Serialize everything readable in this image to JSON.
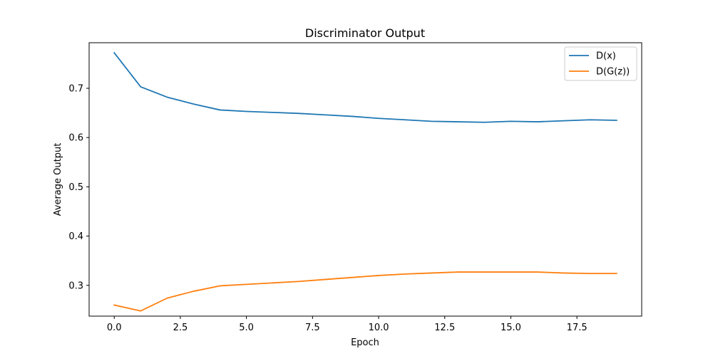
{
  "chart_data": {
    "type": "line",
    "title": "Discriminator Output",
    "xlabel": "Epoch",
    "ylabel": "Average Output",
    "x": [
      0,
      1,
      2,
      3,
      4,
      5,
      6,
      7,
      8,
      9,
      10,
      11,
      12,
      13,
      14,
      15,
      16,
      17,
      18,
      19
    ],
    "xlim": [
      -0.95,
      19.95
    ],
    "ylim": [
      0.2375,
      0.7925
    ],
    "xticks": [
      0.0,
      2.5,
      5.0,
      7.5,
      10.0,
      12.5,
      15.0,
      17.5
    ],
    "xtick_labels": [
      "0.0",
      "2.5",
      "5.0",
      "7.5",
      "10.0",
      "12.5",
      "15.0",
      "17.5"
    ],
    "yticks": [
      0.3,
      0.4,
      0.5,
      0.6,
      0.7
    ],
    "ytick_labels": [
      "0.3",
      "0.4",
      "0.5",
      "0.6",
      "0.7"
    ],
    "grid": false,
    "legend_position": "top-right",
    "series": [
      {
        "name": "D(x)",
        "color": "#1f77b4",
        "values": [
          0.772,
          0.703,
          0.682,
          0.668,
          0.656,
          0.653,
          0.651,
          0.649,
          0.646,
          0.643,
          0.639,
          0.636,
          0.633,
          0.632,
          0.631,
          0.633,
          0.632,
          0.634,
          0.636,
          0.635
        ]
      },
      {
        "name": "D(G(z))",
        "color": "#ff7f0e",
        "values": [
          0.26,
          0.248,
          0.274,
          0.288,
          0.299,
          0.302,
          0.305,
          0.308,
          0.312,
          0.316,
          0.32,
          0.323,
          0.325,
          0.327,
          0.327,
          0.327,
          0.327,
          0.325,
          0.324,
          0.324
        ]
      }
    ]
  }
}
